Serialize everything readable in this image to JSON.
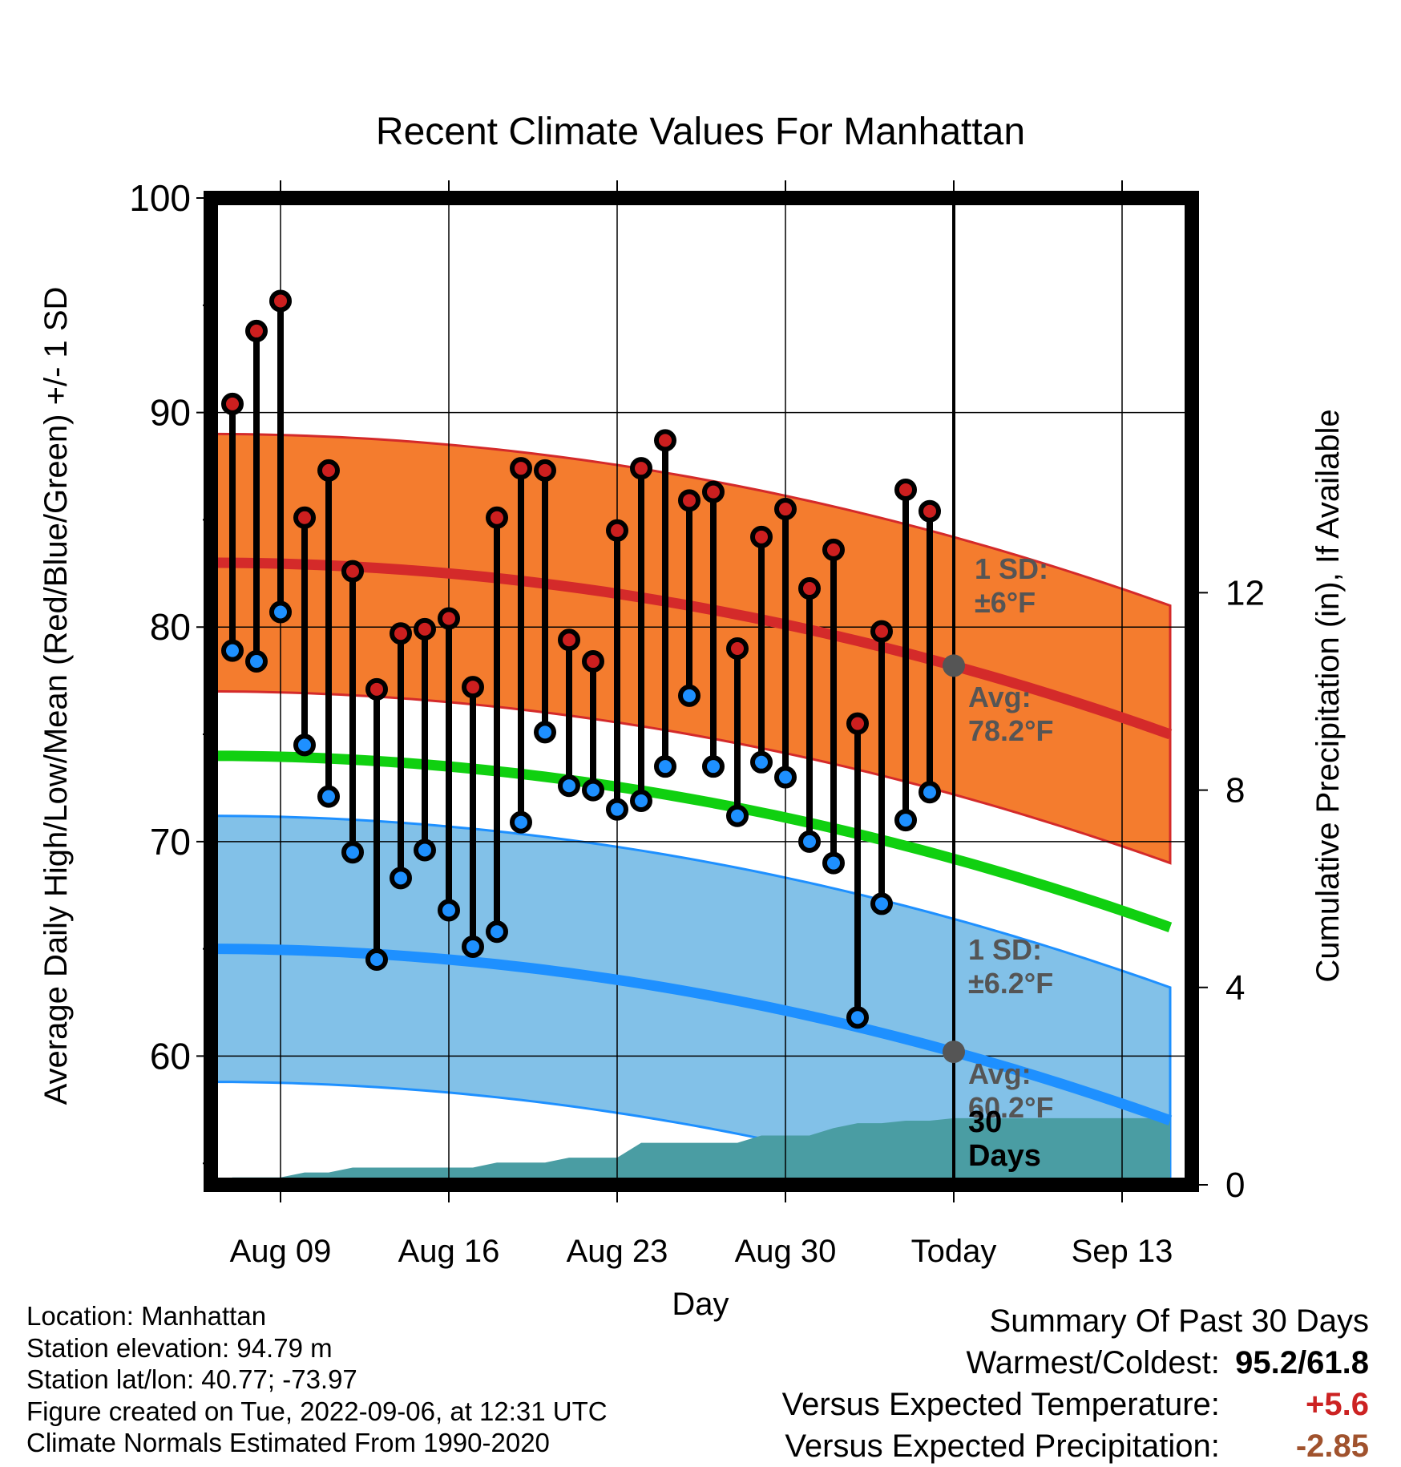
{
  "chart_data": {
    "type": "line",
    "title": "Recent Climate Values For Manhattan",
    "xlabel": "Day",
    "ylabel": "Average Daily High/Low/Mean (Red/Blue/Green) +/- 1 SD",
    "y2label": "Cumulative Precipitation (in), If Available",
    "ylim": [
      54,
      100
    ],
    "y2lim": [
      0,
      20
    ],
    "y_ticks": [
      "100",
      "90",
      "80",
      "70",
      "60"
    ],
    "y2_ticks": [
      "12",
      "8",
      "4",
      "0"
    ],
    "x_ticks": [
      "Aug 09",
      "Aug 16",
      "Aug 23",
      "Aug 30",
      "Today",
      "Sep 13"
    ],
    "today_marker": "Sep 06",
    "days": [
      "Aug 07",
      "Aug 08",
      "Aug 09",
      "Aug 10",
      "Aug 11",
      "Aug 12",
      "Aug 13",
      "Aug 14",
      "Aug 15",
      "Aug 16",
      "Aug 17",
      "Aug 18",
      "Aug 19",
      "Aug 20",
      "Aug 21",
      "Aug 22",
      "Aug 23",
      "Aug 24",
      "Aug 25",
      "Aug 26",
      "Aug 27",
      "Aug 28",
      "Aug 29",
      "Aug 30",
      "Aug 31",
      "Sep 01",
      "Sep 02",
      "Sep 03",
      "Sep 04",
      "Sep 05"
    ],
    "series": [
      {
        "name": "High",
        "color": "#cc1f1f",
        "values": [
          90.4,
          93.8,
          95.2,
          85.1,
          87.3,
          82.6,
          77.1,
          79.7,
          79.9,
          80.4,
          77.2,
          85.1,
          87.4,
          87.3,
          79.4,
          78.4,
          84.5,
          87.4,
          88.7,
          85.9,
          86.3,
          79.0,
          84.2,
          85.5,
          81.8,
          83.6,
          75.5,
          79.8,
          86.4,
          85.4
        ]
      },
      {
        "name": "Low",
        "color": "#1e90ff",
        "values": [
          78.9,
          78.4,
          80.7,
          74.5,
          72.1,
          69.5,
          64.5,
          68.3,
          69.6,
          66.8,
          65.1,
          65.8,
          70.9,
          75.1,
          72.6,
          72.4,
          71.5,
          71.9,
          73.5,
          76.8,
          73.5,
          71.2,
          73.7,
          73.0,
          70.0,
          69.0,
          61.8,
          67.1,
          71.0,
          72.3
        ]
      }
    ],
    "normals": {
      "days_start": "Aug 06",
      "days_end": "Sep 15",
      "high_avg": [
        83.0,
        75.0
      ],
      "high_sd": 6,
      "low_avg": [
        65.0,
        57.0
      ],
      "low_sd": 6.2,
      "mean_avg": [
        74.0,
        66.0
      ],
      "colors": {
        "high_band": "#f47c2e",
        "high_line": "#d42a2a",
        "low_band": "#82c1e8",
        "low_line": "#1e90ff",
        "mean_line": "#10d010",
        "precip": "#4a9da3"
      }
    },
    "precip_cumulative": {
      "days": [
        "Aug 06",
        "Aug 07",
        "Aug 08",
        "Aug 09",
        "Aug 10",
        "Aug 11",
        "Aug 12",
        "Aug 13",
        "Aug 14",
        "Aug 15",
        "Aug 16",
        "Aug 17",
        "Aug 18",
        "Aug 19",
        "Aug 20",
        "Aug 21",
        "Aug 22",
        "Aug 23",
        "Aug 24",
        "Aug 25",
        "Aug 26",
        "Aug 27",
        "Aug 28",
        "Aug 29",
        "Aug 30",
        "Aug 31",
        "Sep 01",
        "Sep 02",
        "Sep 03",
        "Sep 04",
        "Sep 05",
        "Sep 06",
        "Sep 15"
      ],
      "values": [
        0.0,
        0.15,
        0.15,
        0.15,
        0.25,
        0.25,
        0.35,
        0.35,
        0.35,
        0.35,
        0.35,
        0.35,
        0.45,
        0.45,
        0.45,
        0.55,
        0.55,
        0.55,
        0.85,
        0.85,
        0.85,
        0.85,
        0.85,
        1.0,
        1.0,
        1.0,
        1.15,
        1.25,
        1.25,
        1.3,
        1.3,
        1.35,
        1.35
      ]
    },
    "annotations": {
      "high_sd_label": [
        "1 SD:",
        "±6°F"
      ],
      "high_avg_label": [
        "Avg:",
        "78.2°F"
      ],
      "high_avg_today": 78.2,
      "low_sd_label": [
        "1 SD:",
        "±6.2°F"
      ],
      "low_avg_label": [
        "Avg:",
        "60.2°F"
      ],
      "low_avg_today": 60.2,
      "precip_label": [
        "30",
        "Days"
      ]
    }
  },
  "footer": {
    "location": "Location: Manhattan",
    "elevation": "Station elevation: 94.79 m",
    "latlon": "Station lat/lon: 40.77; -73.97",
    "created": "Figure created on Tue, 2022-09-06, at 12:31 UTC",
    "normals": "Climate Normals Estimated From 1990-2020"
  },
  "summary": {
    "title": "Summary Of Past 30 Days",
    "warm_cold_label": "Warmest/Coldest:",
    "warm_cold_value": "95.2/61.8",
    "temp_label": "Versus Expected Temperature:",
    "temp_value": "+5.6",
    "temp_color": "#cc2222",
    "precip_label": "Versus Expected Precipitation:",
    "precip_value": "-2.85",
    "precip_color": "#a0522d"
  }
}
